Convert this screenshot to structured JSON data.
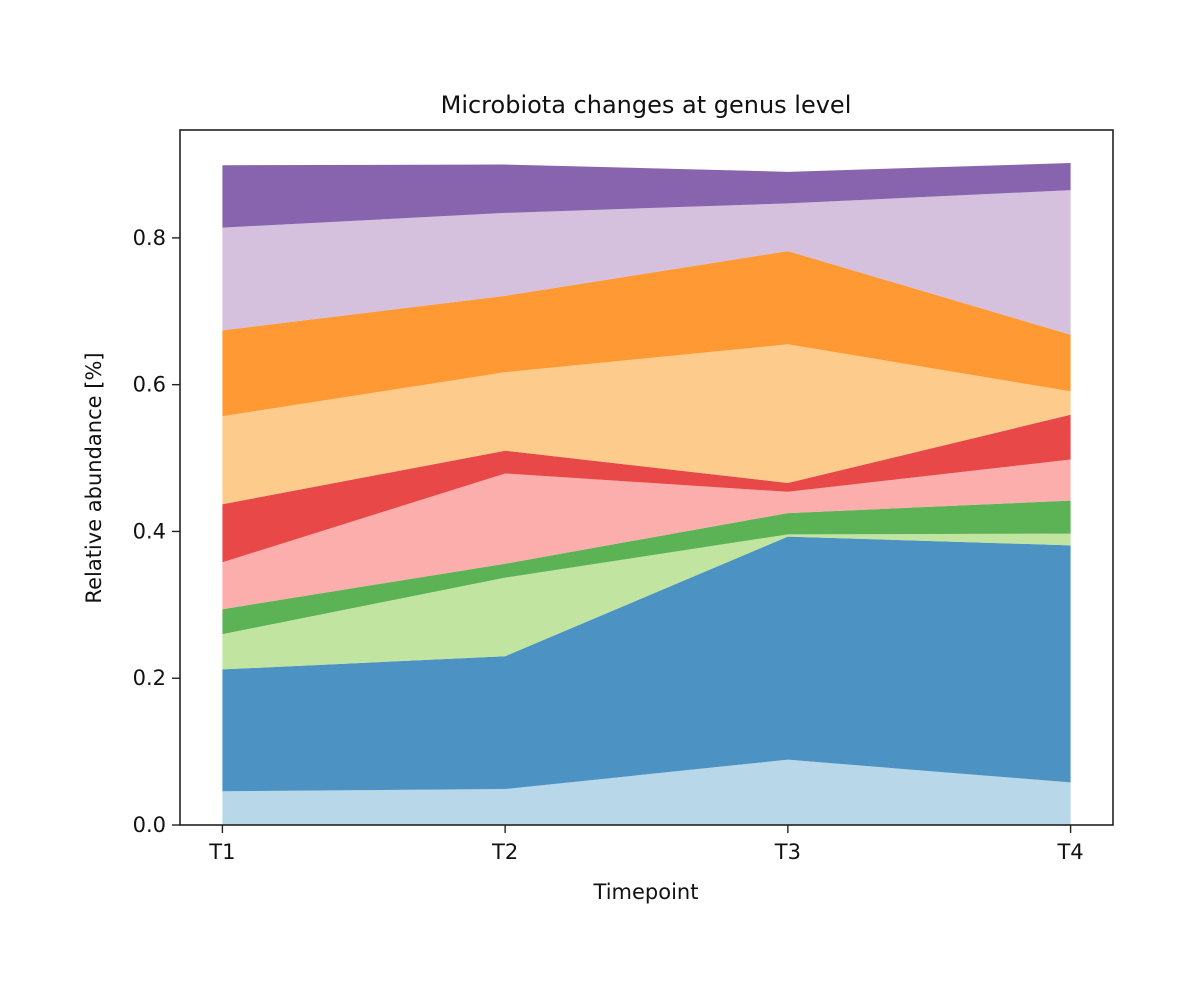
{
  "chart_data": {
    "type": "area",
    "stacked": true,
    "title": "Microbiota changes at genus level",
    "xlabel": "Timepoint",
    "ylabel": "Relative abundance [%]",
    "categories": [
      "T1",
      "T2",
      "T3",
      "T4"
    ],
    "ylim": [
      0,
      0.947
    ],
    "yticks": [
      "0.0",
      "0.2",
      "0.4",
      "0.6",
      "0.8"
    ],
    "ytick_values": [
      0,
      0.2,
      0.4,
      0.6,
      0.8
    ],
    "grid": false,
    "legend": "none",
    "series": [
      {
        "color": "#a6cee3",
        "values": [
          0.046,
          0.049,
          0.089,
          0.058
        ]
      },
      {
        "color": "#1f78b4",
        "values": [
          0.166,
          0.181,
          0.304,
          0.323
        ]
      },
      {
        "color": "#b2df8a",
        "values": [
          0.048,
          0.107,
          0.003,
          0.016
        ]
      },
      {
        "color": "#33a02c",
        "values": [
          0.034,
          0.019,
          0.029,
          0.045
        ]
      },
      {
        "color": "#fb9a99",
        "values": [
          0.064,
          0.123,
          0.029,
          0.056
        ]
      },
      {
        "color": "#e31a1c",
        "values": [
          0.079,
          0.031,
          0.012,
          0.061
        ]
      },
      {
        "color": "#fdbf6f",
        "values": [
          0.12,
          0.107,
          0.189,
          0.032
        ]
      },
      {
        "color": "#ff7f00",
        "values": [
          0.117,
          0.104,
          0.127,
          0.077
        ]
      },
      {
        "color": "#cab2d6",
        "values": [
          0.14,
          0.113,
          0.065,
          0.197
        ]
      },
      {
        "color": "#6a3d9a",
        "values": [
          0.085,
          0.066,
          0.043,
          0.037
        ]
      }
    ]
  }
}
